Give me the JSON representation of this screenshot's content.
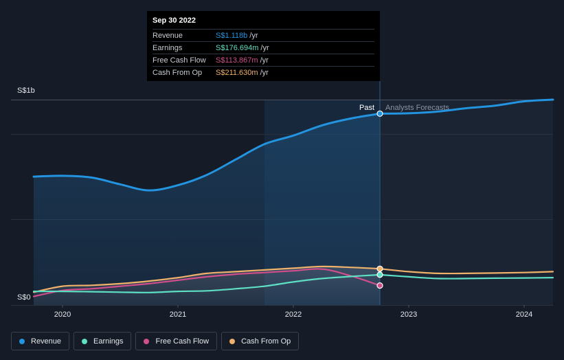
{
  "tooltip": {
    "date": "Sep 30 2022",
    "rows": [
      {
        "name": "Revenue",
        "value": "S$1.118b",
        "unit": "/yr",
        "color": "#2394df"
      },
      {
        "name": "Earnings",
        "value": "S$176.694m",
        "unit": "/yr",
        "color": "#5de0c4"
      },
      {
        "name": "Free Cash Flow",
        "value": "S$113.867m",
        "unit": "/yr",
        "color": "#d14e8d"
      },
      {
        "name": "Cash From Op",
        "value": "S$211.630m",
        "unit": "/yr",
        "color": "#f0b26a"
      }
    ]
  },
  "labels": {
    "past": "Past",
    "forecast": "Analysts Forecasts"
  },
  "legend": [
    {
      "name": "Revenue",
      "color": "#2394df"
    },
    {
      "name": "Earnings",
      "color": "#5de0c4"
    },
    {
      "name": "Free Cash Flow",
      "color": "#d14e8d"
    },
    {
      "name": "Cash From Op",
      "color": "#f0b26a"
    }
  ],
  "chart_data": {
    "type": "line",
    "title": "",
    "xlabel": "",
    "ylabel": "",
    "y_ticks": [
      "S$0",
      "S$1b"
    ],
    "x_ticks": [
      "2020",
      "2021",
      "2022",
      "2023",
      "2024"
    ],
    "x_range": [
      2019.75,
      2024.25
    ],
    "y_range": [
      0,
      1.2
    ],
    "past_end": 2022.75,
    "highlight_start": 2021.75,
    "series": [
      {
        "name": "Revenue",
        "color": "#2394df",
        "x": [
          2019.75,
          2020.0,
          2020.25,
          2020.5,
          2020.75,
          2021.0,
          2021.25,
          2021.5,
          2021.75,
          2022.0,
          2022.25,
          2022.5,
          2022.75,
          2023.0,
          2023.25,
          2023.5,
          2023.75,
          2024.0,
          2024.25
        ],
        "y": [
          0.75,
          0.755,
          0.745,
          0.705,
          0.67,
          0.7,
          0.76,
          0.85,
          0.94,
          0.99,
          1.05,
          1.09,
          1.118,
          1.12,
          1.13,
          1.15,
          1.165,
          1.19,
          1.2
        ]
      },
      {
        "name": "Earnings",
        "color": "#5de0c4",
        "x": [
          2019.75,
          2020.0,
          2020.25,
          2020.5,
          2020.75,
          2021.0,
          2021.25,
          2021.5,
          2021.75,
          2022.0,
          2022.25,
          2022.5,
          2022.75,
          2023.0,
          2023.25,
          2023.5,
          2023.75,
          2024.0,
          2024.25
        ],
        "y": [
          0.08,
          0.08,
          0.078,
          0.075,
          0.073,
          0.08,
          0.083,
          0.095,
          0.11,
          0.135,
          0.155,
          0.167,
          0.177,
          0.165,
          0.155,
          0.155,
          0.157,
          0.158,
          0.16
        ]
      },
      {
        "name": "Free Cash Flow",
        "color": "#d14e8d",
        "x": [
          2019.75,
          2020.0,
          2020.25,
          2020.5,
          2020.75,
          2021.0,
          2021.25,
          2021.5,
          2021.75,
          2022.0,
          2022.25,
          2022.5,
          2022.75
        ],
        "y": [
          0.05,
          0.085,
          0.095,
          0.11,
          0.125,
          0.145,
          0.165,
          0.18,
          0.19,
          0.2,
          0.21,
          0.17,
          0.114
        ]
      },
      {
        "name": "Cash From Op",
        "color": "#f0b26a",
        "x": [
          2019.75,
          2020.0,
          2020.25,
          2020.5,
          2020.75,
          2021.0,
          2021.25,
          2021.5,
          2021.75,
          2022.0,
          2022.25,
          2022.5,
          2022.75,
          2023.0,
          2023.25,
          2023.5,
          2023.75,
          2024.0,
          2024.25
        ],
        "y": [
          0.075,
          0.11,
          0.115,
          0.125,
          0.14,
          0.16,
          0.185,
          0.195,
          0.205,
          0.215,
          0.225,
          0.22,
          0.212,
          0.195,
          0.185,
          0.185,
          0.187,
          0.19,
          0.195
        ]
      }
    ]
  }
}
